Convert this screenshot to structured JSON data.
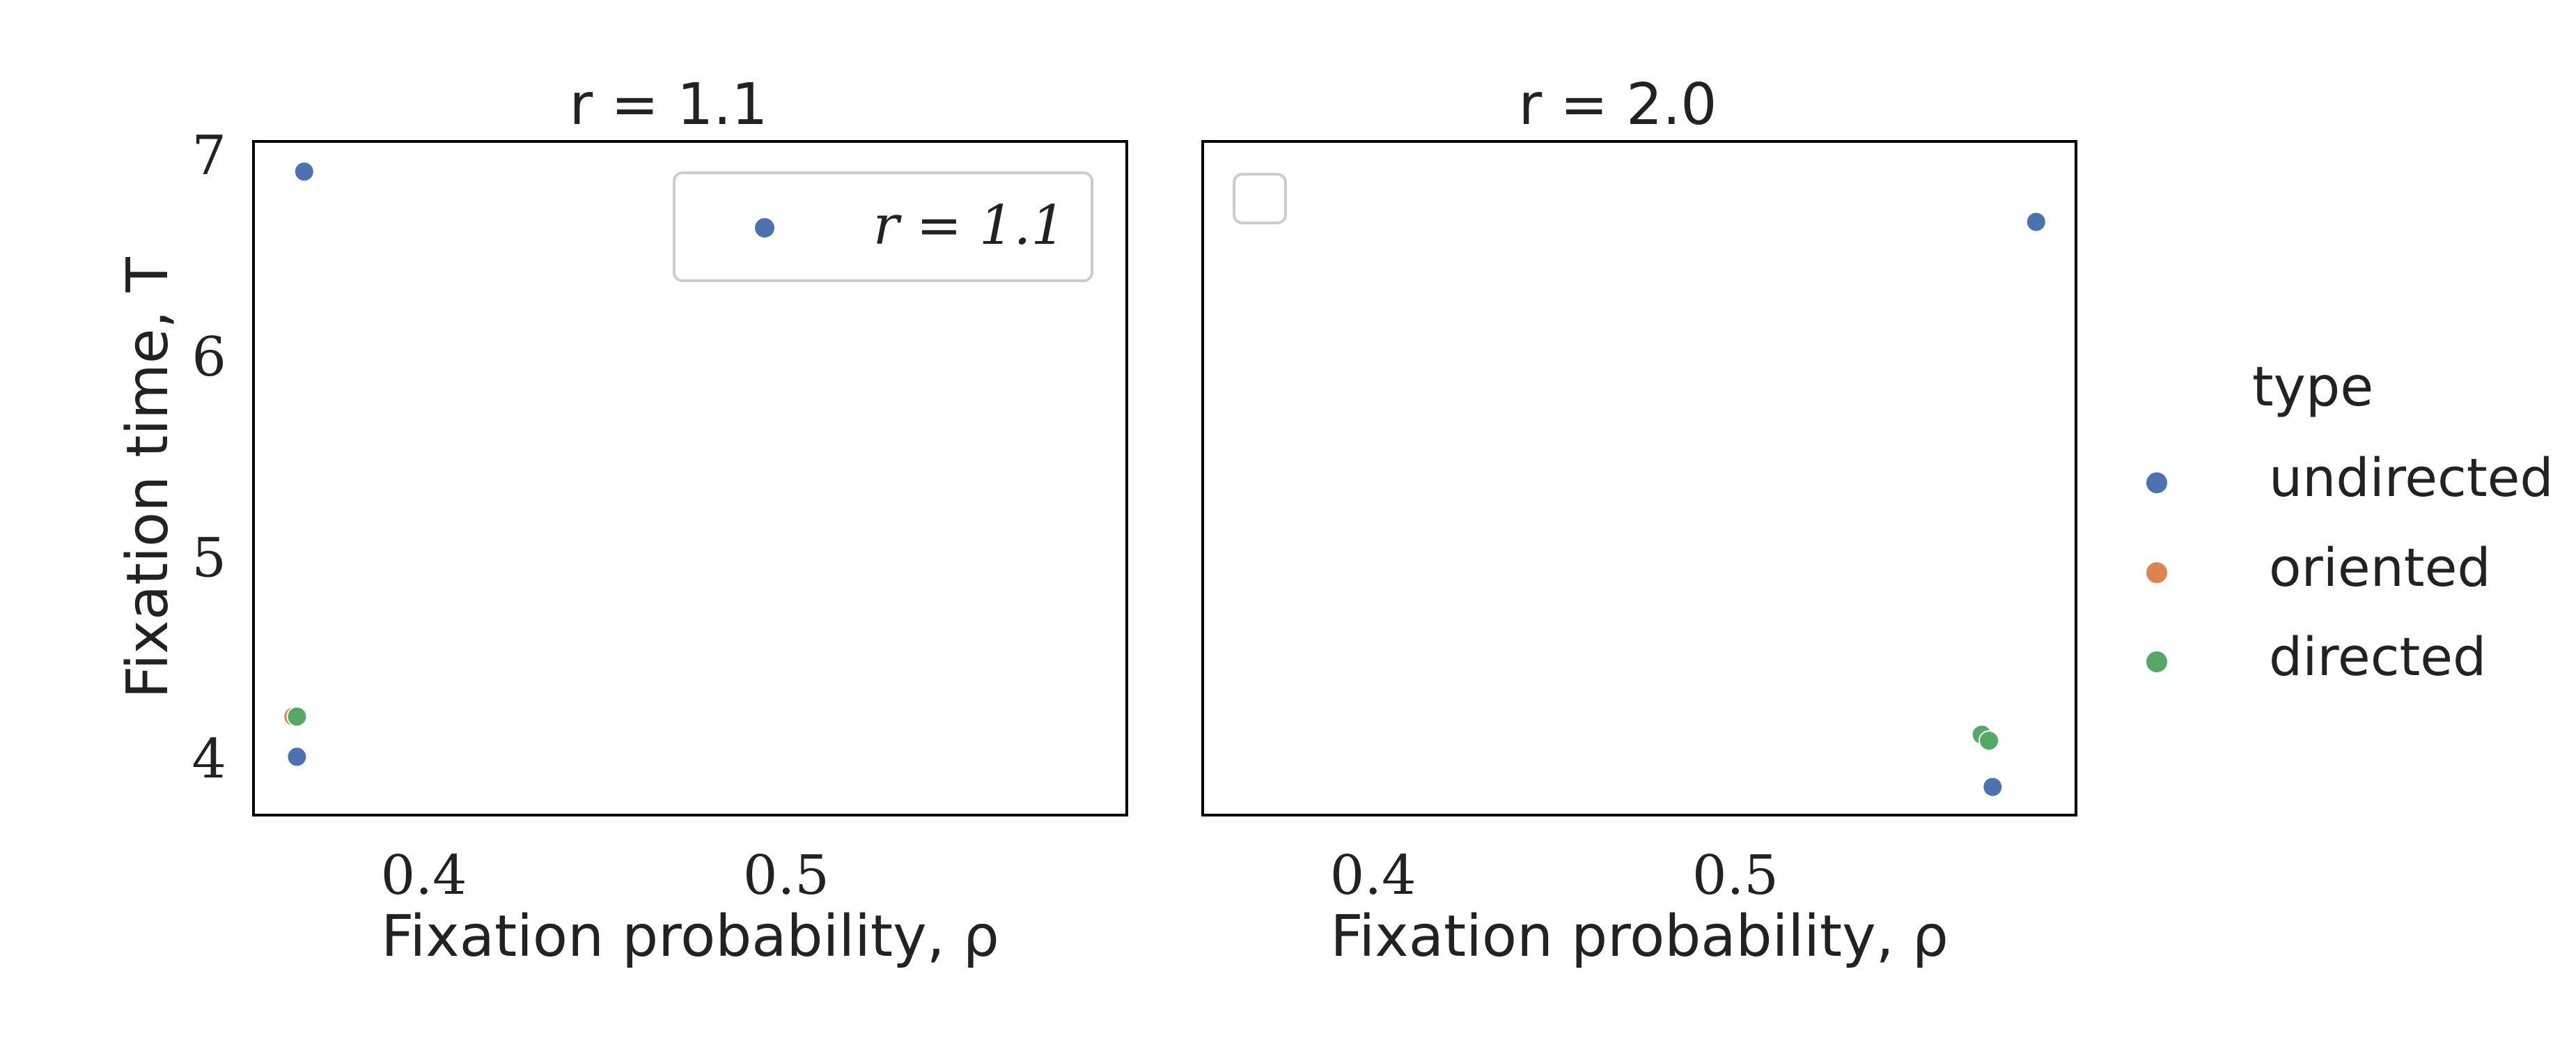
{
  "chart_data": [
    {
      "type": "scatter",
      "title": "r = 1.1",
      "xlabel": "Fixation probability, ρ",
      "ylabel": "Fixation time, T",
      "xlim": [
        0.353,
        0.594
      ],
      "ylim": [
        3.72,
        7.07
      ],
      "xticks": [
        0.4,
        0.5
      ],
      "xtick_labels": [
        "0.4",
        "0.5"
      ],
      "yticks": [
        4,
        5,
        6,
        7
      ],
      "ytick_labels": [
        "4",
        "5",
        "6",
        "7"
      ],
      "legend": {
        "placement": "top-right",
        "entries": [
          {
            "label": "r = 1.1",
            "color": "#4c72b0"
          }
        ]
      },
      "series": [
        {
          "name": "undirected",
          "color": "#4c72b0",
          "points": [
            {
              "x": 0.367,
              "y": 6.92
            },
            {
              "x": 0.365,
              "y": 4.01
            }
          ]
        },
        {
          "name": "oriented",
          "color": "#dd8452",
          "points": [
            {
              "x": 0.364,
              "y": 4.21
            }
          ]
        },
        {
          "name": "directed",
          "color": "#55a868",
          "points": [
            {
              "x": 0.365,
              "y": 4.21
            }
          ]
        }
      ]
    },
    {
      "type": "scatter",
      "title": "r = 2.0",
      "xlabel": "Fixation probability, ρ",
      "ylabel": "",
      "xlim": [
        0.353,
        0.594
      ],
      "ylim": [
        3.72,
        7.07
      ],
      "xticks": [
        0.4,
        0.5
      ],
      "xtick_labels": [
        "0.4",
        "0.5"
      ],
      "yticks": [],
      "ytick_labels": [],
      "legend": {
        "placement": "top-left",
        "entries": []
      },
      "series": [
        {
          "name": "undirected",
          "color": "#4c72b0",
          "points": [
            {
              "x": 0.583,
              "y": 6.67
            },
            {
              "x": 0.571,
              "y": 3.86
            }
          ]
        },
        {
          "name": "oriented",
          "color": "#dd8452",
          "points": [
            {
              "x": 0.568,
              "y": 4.12
            }
          ]
        },
        {
          "name": "directed",
          "color": "#55a868",
          "points": [
            {
              "x": 0.568,
              "y": 4.12
            },
            {
              "x": 0.57,
              "y": 4.09
            }
          ]
        }
      ]
    }
  ],
  "legend": {
    "title": "type",
    "entries": [
      {
        "label": "undirected",
        "color": "#4c72b0"
      },
      {
        "label": "oriented",
        "color": "#dd8452"
      },
      {
        "label": "directed",
        "color": "#55a868"
      }
    ]
  }
}
